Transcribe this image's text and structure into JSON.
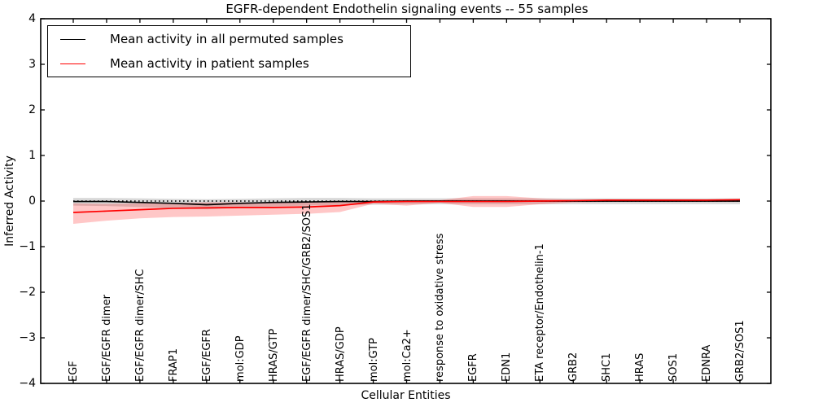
{
  "title": "EGFR-dependent Endothelin signaling events -- 55 samples",
  "chart_data": {
    "type": "line",
    "title": "EGFR-dependent Endothelin signaling events -- 55 samples",
    "xlabel": "Cellular Entities",
    "ylabel": "Inferred Activity",
    "ylim": [
      -4,
      4
    ],
    "ytick_labels": [
      "4",
      "3",
      "2",
      "1",
      "0",
      "−1",
      "−2",
      "−3",
      "−4"
    ],
    "ytick_values": [
      4,
      3,
      2,
      1,
      0,
      -1,
      -2,
      -3,
      -4
    ],
    "grid": false,
    "legend_position": "upper left",
    "zero_reference_line": {
      "y": 0,
      "style": "dotted",
      "color": "#000000"
    },
    "categories": [
      "EGF",
      "EGF/EGFR dimer",
      "EGF/EGFR dimer/SHC",
      "FRAP1",
      "EGF/EGFR",
      "mol:GDP",
      "HRAS/GTP",
      "EGF/EGFR dimer/SHC/GRB2/SOS1",
      "HRAS/GDP",
      "mol:GTP",
      "mol:Ca2+",
      "response to oxidative stress",
      "EGFR",
      "EDN1",
      "ETA receptor/Endothelin-1",
      "GRB2",
      "SHC1",
      "HRAS",
      "SOS1",
      "EDNRA",
      "GRB2/SOS1"
    ],
    "series": [
      {
        "name": "Mean activity in all permuted samples",
        "color": "#000000",
        "band_color": "rgba(0,0,0,0.15)",
        "values": [
          -0.01,
          -0.01,
          -0.03,
          -0.05,
          -0.08,
          -0.05,
          -0.03,
          -0.02,
          -0.01,
          -0.01,
          0,
          0,
          0,
          0,
          0,
          0,
          0,
          0,
          0,
          0,
          0
        ],
        "band_upper": [
          0.07,
          0.07,
          0.06,
          0.05,
          0.04,
          0.05,
          0.06,
          0.07,
          0.07,
          0.06,
          0.06,
          0.06,
          0.06,
          0.06,
          0.06,
          0.06,
          0.06,
          0.06,
          0.06,
          0.06,
          0.06
        ],
        "band_lower": [
          -0.1,
          -0.11,
          -0.13,
          -0.16,
          -0.18,
          -0.15,
          -0.12,
          -0.1,
          -0.09,
          -0.08,
          -0.07,
          -0.07,
          -0.07,
          -0.07,
          -0.07,
          -0.07,
          -0.07,
          -0.07,
          -0.07,
          -0.07,
          -0.07
        ]
      },
      {
        "name": "Mean activity in patient samples",
        "color": "#ff0000",
        "band_color": "rgba(255,0,0,0.22)",
        "values": [
          -0.25,
          -0.22,
          -0.19,
          -0.16,
          -0.15,
          -0.14,
          -0.14,
          -0.13,
          -0.1,
          -0.02,
          -0.01,
          -0.01,
          -0.01,
          -0.01,
          0.0,
          0.01,
          0.02,
          0.02,
          0.02,
          0.02,
          0.03
        ],
        "band_upper": [
          -0.05,
          -0.06,
          -0.05,
          -0.04,
          -0.03,
          -0.03,
          -0.03,
          -0.03,
          -0.01,
          0.01,
          0.02,
          0.02,
          0.11,
          0.11,
          0.06,
          0.03,
          0.03,
          0.03,
          0.03,
          0.03,
          0.04
        ],
        "band_lower": [
          -0.5,
          -0.43,
          -0.38,
          -0.35,
          -0.34,
          -0.32,
          -0.3,
          -0.28,
          -0.24,
          -0.06,
          -0.1,
          -0.04,
          -0.13,
          -0.13,
          -0.07,
          -0.03,
          -0.02,
          -0.02,
          -0.02,
          -0.02,
          -0.02
        ]
      }
    ]
  }
}
